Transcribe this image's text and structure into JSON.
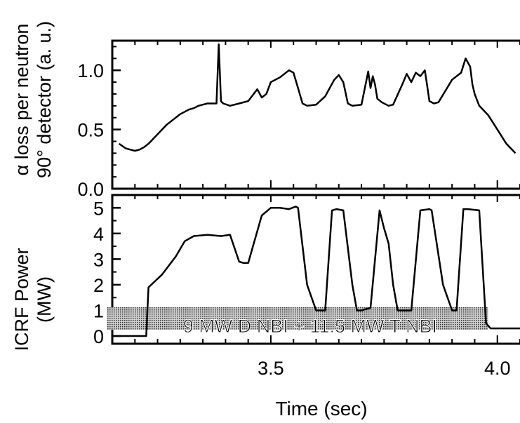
{
  "chart_data": [
    {
      "type": "line",
      "ylabel_line1": "α loss per neutron",
      "ylabel_line2": "90° detector (a. u.)",
      "ylim": [
        0.0,
        1.25
      ],
      "xlim": [
        3.15,
        4.05
      ],
      "ytick_labels": [
        "0.0",
        "0.5",
        "1.0"
      ],
      "ytick_values": [
        0.0,
        0.5,
        1.0
      ],
      "series": [
        {
          "x": [
            3.165,
            3.18,
            3.19,
            3.2,
            3.21,
            3.22,
            3.23,
            3.24,
            3.25,
            3.26,
            3.27,
            3.28,
            3.29,
            3.3,
            3.31,
            3.32,
            3.33,
            3.34,
            3.35,
            3.36,
            3.37,
            3.38,
            3.385,
            3.39,
            3.392,
            3.395,
            3.41,
            3.43,
            3.45,
            3.47,
            3.48,
            3.49,
            3.5,
            3.51,
            3.52,
            3.53,
            3.54,
            3.55,
            3.56,
            3.57,
            3.58,
            3.6,
            3.62,
            3.64,
            3.65,
            3.66,
            3.67,
            3.68,
            3.7,
            3.715,
            3.72,
            3.725,
            3.73,
            3.735,
            3.745,
            3.76,
            3.77,
            3.79,
            3.8,
            3.81,
            3.82,
            3.83,
            3.84,
            3.845,
            3.85,
            3.86,
            3.87,
            3.9,
            3.92,
            3.93,
            3.94,
            3.945,
            3.95,
            3.96,
            3.98,
            4.0,
            4.02,
            4.04
          ],
          "y": [
            0.38,
            0.34,
            0.33,
            0.32,
            0.33,
            0.35,
            0.38,
            0.42,
            0.46,
            0.5,
            0.54,
            0.57,
            0.6,
            0.63,
            0.65,
            0.67,
            0.68,
            0.7,
            0.71,
            0.72,
            0.72,
            0.72,
            1.22,
            0.74,
            0.73,
            0.72,
            0.7,
            0.72,
            0.74,
            0.84,
            0.77,
            0.8,
            0.9,
            0.92,
            0.94,
            0.97,
            1.0,
            0.98,
            0.85,
            0.72,
            0.7,
            0.71,
            0.78,
            0.92,
            0.96,
            0.9,
            0.72,
            0.7,
            0.71,
            0.99,
            0.85,
            0.95,
            0.88,
            0.76,
            0.73,
            0.7,
            0.71,
            0.88,
            0.97,
            0.9,
            0.98,
            0.95,
            1.0,
            0.87,
            0.74,
            0.72,
            0.73,
            0.92,
            0.98,
            1.1,
            1.03,
            0.88,
            0.8,
            0.7,
            0.62,
            0.5,
            0.38,
            0.3
          ]
        }
      ]
    },
    {
      "type": "line",
      "ylabel_line1": "ICRF Power",
      "ylabel_line2": "(MW)",
      "xlabel": "Time (sec)",
      "ylim": [
        -0.3,
        5.5
      ],
      "xlim": [
        3.15,
        4.05
      ],
      "ytick_labels": [
        "0",
        "1",
        "2",
        "3",
        "4",
        "5"
      ],
      "ytick_values": [
        0,
        1,
        2,
        3,
        4,
        5
      ],
      "xtick_labels": [
        "3.5",
        "4.0"
      ],
      "xtick_values": [
        3.5,
        4.0
      ],
      "annotation": "9 MW D NBI + 11.5 MW T NBI",
      "annotation_range": [
        3.15,
        3.98
      ],
      "series": [
        {
          "x": [
            3.15,
            3.225,
            3.23,
            3.26,
            3.29,
            3.31,
            3.33,
            3.36,
            3.39,
            3.41,
            3.43,
            3.44,
            3.45,
            3.48,
            3.5,
            3.52,
            3.54,
            3.555,
            3.56,
            3.58,
            3.6,
            3.61,
            3.62,
            3.635,
            3.645,
            3.66,
            3.68,
            3.69,
            3.7,
            3.72,
            3.74,
            3.75,
            3.76,
            3.77,
            3.78,
            3.79,
            3.81,
            3.83,
            3.85,
            3.855,
            3.88,
            3.9,
            3.91,
            3.925,
            3.935,
            3.96,
            3.975,
            3.985,
            4.05
          ],
          "y": [
            0,
            0,
            1.9,
            2.4,
            3.1,
            3.7,
            3.9,
            3.95,
            3.9,
            3.95,
            2.9,
            2.85,
            2.85,
            4.7,
            5.0,
            5.0,
            4.95,
            5.05,
            5.0,
            2.0,
            1.0,
            1.0,
            1.0,
            4.9,
            4.95,
            4.9,
            2.0,
            1.0,
            1.0,
            1.1,
            4.9,
            4.2,
            3.6,
            2.0,
            1.0,
            1.0,
            1.0,
            4.9,
            4.95,
            4.9,
            2.0,
            1.0,
            1.0,
            4.95,
            4.95,
            4.9,
            0.5,
            0.3,
            0.3
          ]
        }
      ]
    }
  ]
}
